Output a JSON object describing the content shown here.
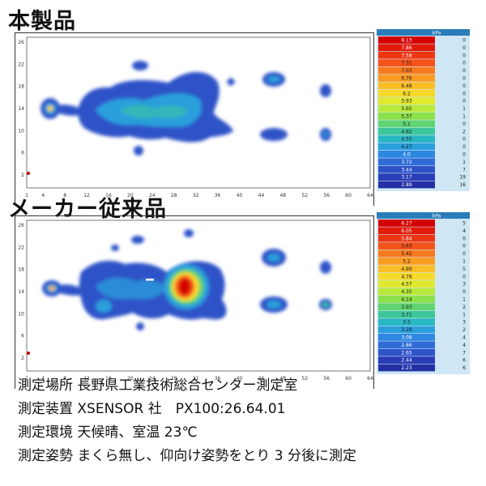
{
  "titles": {
    "product": "本製品",
    "competitor": "メーカー従来品"
  },
  "chart_data": [
    {
      "type": "heatmap",
      "name_label": "本製品",
      "x_ticks": [
        "1",
        "4",
        "8",
        "12",
        "16",
        "20",
        "24",
        "28",
        "32",
        "36",
        "40",
        "44",
        "48",
        "52",
        "56",
        "60",
        "64"
      ],
      "y_ticks": [
        "2",
        "6",
        "10",
        "14",
        "18",
        "22",
        "26"
      ],
      "unit": "kPa",
      "legend_values": [
        "8.13",
        "7.86",
        "7.58",
        "7.31",
        "7.03",
        "6.76",
        "6.48",
        "6.2",
        "5.93",
        "5.65",
        "5.37",
        "5.1",
        "4.82",
        "4.55",
        "4.27",
        "4.0",
        "3.72",
        "3.44",
        "3.17",
        "2.89"
      ],
      "legend_counts": [
        "0",
        "0",
        "0",
        "0",
        "0",
        "0",
        "0",
        "0",
        "0",
        "1",
        "1",
        "0",
        "2",
        "0",
        "0",
        "0",
        "1",
        "7",
        "19",
        "16"
      ]
    },
    {
      "type": "heatmap",
      "name_label": "メーカー従来品",
      "x_ticks": [
        "1",
        "4",
        "8",
        "12",
        "16",
        "20",
        "24",
        "28",
        "32",
        "36",
        "40",
        "44",
        "48",
        "52",
        "56",
        "60",
        "64"
      ],
      "y_ticks": [
        "2",
        "6",
        "10",
        "14",
        "18",
        "22",
        "26"
      ],
      "unit": "kPa",
      "legend_values": [
        "6.27",
        "6.05",
        "5.84",
        "5.63",
        "5.42",
        "5.2",
        "4.99",
        "4.78",
        "4.57",
        "4.35",
        "4.14",
        "3.93",
        "3.71",
        "3.5",
        "3.29",
        "3.08",
        "2.86",
        "2.65",
        "2.44",
        "2.23"
      ],
      "legend_counts": [
        "5",
        "4",
        "0",
        "0",
        "0",
        "1",
        "5",
        "0",
        "3",
        "0",
        "1",
        "2",
        "1",
        "3",
        "2",
        "4",
        "4",
        "7",
        "6",
        "6"
      ]
    }
  ],
  "colors": {
    "scale": [
      "#d40000",
      "#e21a0a",
      "#ee3512",
      "#f4531a",
      "#f87a1e",
      "#fa9c22",
      "#fbbd26",
      "#f6d92a",
      "#e0e830",
      "#b8ea3a",
      "#8ce04a",
      "#5fd470",
      "#3cc79a",
      "#2ab7c4",
      "#2a9fdc",
      "#2d86e0",
      "#2f6bd8",
      "#2e52c8",
      "#2a3cb6",
      "#2330a4"
    ],
    "header": "#2a7db8",
    "row_bg": "#cfe6f5"
  },
  "footer": [
    {
      "label": "測定場所",
      "value": "長野県工業技術総合センター測定室"
    },
    {
      "label": "測定装置",
      "value": "XSENSOR 社　PX100:26.64.01"
    },
    {
      "label": "測定環境",
      "value": "天候晴、室温 23℃"
    },
    {
      "label": "測定姿勢",
      "value": "まくら無し、仰向け姿勢をとり 3 分後に測定"
    }
  ]
}
